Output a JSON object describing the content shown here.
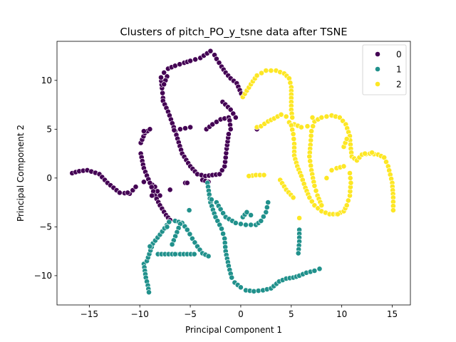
{
  "chart_data": {
    "type": "scatter",
    "title": "Clusters of pitch_PO_y_tsne data after TSNE",
    "xlabel": "Principal Component 1",
    "ylabel": "Principal Component 2",
    "xlim": [
      -18.2,
      16.8
    ],
    "ylim": [
      -13.0,
      14.0
    ],
    "xticks": [
      -15,
      -10,
      -5,
      0,
      5,
      10,
      15
    ],
    "xtick_labels": [
      "−15",
      "−10",
      "−5",
      "0",
      "5",
      "10",
      "15"
    ],
    "yticks": [
      -10,
      -5,
      0,
      5,
      10
    ],
    "ytick_labels": [
      "−10",
      "−5",
      "0",
      "5",
      "10"
    ],
    "grid": false,
    "legend_position": "top-right",
    "series": [
      {
        "name": "0",
        "color": "#440154",
        "path_segments": [
          [
            [
              -16.7,
              0.5
            ],
            [
              -16.0,
              0.7
            ],
            [
              -15.2,
              0.8
            ],
            [
              -14.0,
              0.4
            ],
            [
              -13.2,
              -0.5
            ],
            [
              -12.0,
              -1.5
            ],
            [
              -11.0,
              -1.6
            ],
            [
              -10.4,
              -0.9
            ]
          ],
          [
            [
              -9.6,
              -0.4
            ],
            [
              -9.0,
              -0.5
            ],
            [
              -8.5,
              -0.9
            ],
            [
              -8.0,
              -1.8
            ]
          ],
          [
            [
              -9.9,
              3.6
            ],
            [
              -9.5,
              4.6
            ],
            [
              -9.0,
              5.0
            ]
          ],
          [
            [
              -9.9,
              2.5
            ],
            [
              -9.6,
              1.0
            ],
            [
              -9.0,
              -0.5
            ],
            [
              -8.5,
              -1.8
            ],
            [
              -8.0,
              -2.8
            ],
            [
              -7.4,
              -3.8
            ],
            [
              -7.0,
              -4.3
            ]
          ],
          [
            [
              -7.7,
              8.2
            ],
            [
              -7.8,
              9.2
            ],
            [
              -7.9,
              10.3
            ],
            [
              -7.6,
              10.8
            ],
            [
              -7.2,
              11.2
            ],
            [
              -6.5,
              11.5
            ],
            [
              -5.6,
              11.8
            ],
            [
              -5.0,
              12.0
            ],
            [
              -4.0,
              12.3
            ],
            [
              -3.0,
              13.0
            ],
            [
              -2.6,
              12.6
            ],
            [
              -2.4,
              12.2
            ],
            [
              -1.9,
              11.4
            ],
            [
              -1.5,
              10.8
            ],
            [
              -1.0,
              10.2
            ],
            [
              -0.4,
              9.7
            ],
            [
              0.2,
              8.3
            ]
          ],
          [
            [
              -7.7,
              7.9
            ],
            [
              -7.2,
              6.8
            ],
            [
              -6.5,
              4.8
            ],
            [
              -5.8,
              2.5
            ],
            [
              -5.0,
              1.2
            ],
            [
              -4.3,
              0.4
            ],
            [
              -3.5,
              0.2
            ],
            [
              -2.8,
              0.3
            ],
            [
              -2.1,
              0.4
            ],
            [
              -1.6,
              1.2
            ],
            [
              -1.4,
              3.0
            ],
            [
              -1.2,
              4.5
            ]
          ],
          [
            [
              -6.6,
              4.9
            ],
            [
              -6.0,
              5.0
            ],
            [
              -5.0,
              5.2
            ]
          ],
          [
            [
              -3.4,
              5.0
            ],
            [
              -2.8,
              5.5
            ],
            [
              -2.0,
              6.0
            ],
            [
              -1.2,
              6.2
            ]
          ],
          [
            [
              -1.8,
              7.8
            ],
            [
              -1.0,
              7.0
            ],
            [
              -0.5,
              6.2
            ]
          ],
          [
            [
              -1.1,
              5.9
            ],
            [
              -1.0,
              5.0
            ]
          ],
          [
            [
              -7.3,
              10.4
            ],
            [
              -7.6,
              9.6
            ]
          ],
          [
            [
              -5.5,
              -0.5
            ],
            [
              -5.3,
              -0.5
            ]
          ],
          [
            [
              -3.8,
              -0.2
            ],
            [
              -3.2,
              -0.4
            ]
          ]
        ],
        "points": [
          [
            1.6,
            5.0
          ],
          [
            -8.8,
            -1.8
          ],
          [
            -7.0,
            -1.2
          ],
          [
            -11.2,
            -1.5
          ],
          [
            -9.6,
            4.8
          ]
        ]
      },
      {
        "name": "1",
        "color": "#21918c",
        "path_segments": [
          [
            [
              -9.6,
              -8.8
            ],
            [
              -9.5,
              -9.5
            ],
            [
              -9.4,
              -10.2
            ],
            [
              -9.2,
              -11.0
            ],
            [
              -9.1,
              -11.7
            ]
          ],
          [
            [
              -9.3,
              -8.5
            ],
            [
              -8.7,
              -6.7
            ],
            [
              -8.0,
              -5.8
            ],
            [
              -7.1,
              -4.5
            ],
            [
              -6.5,
              -4.4
            ],
            [
              -5.8,
              -4.6
            ],
            [
              -5.3,
              -5.3
            ],
            [
              -4.8,
              -6.2
            ],
            [
              -4.3,
              -7.0
            ],
            [
              -3.8,
              -7.7
            ],
            [
              -3.2,
              -8.0
            ]
          ],
          [
            [
              -8.2,
              -7.8
            ],
            [
              -7.5,
              -7.8
            ],
            [
              -6.8,
              -7.8
            ],
            [
              -6.0,
              -7.8
            ],
            [
              -5.3,
              -7.8
            ],
            [
              -4.6,
              -7.8
            ]
          ],
          [
            [
              -3.3,
              -0.5
            ],
            [
              -3.0,
              -2.5
            ],
            [
              -2.5,
              -4.0
            ],
            [
              -1.9,
              -5.2
            ],
            [
              -1.6,
              -6.2
            ],
            [
              -1.5,
              -7.5
            ],
            [
              -1.2,
              -9.0
            ],
            [
              -0.9,
              -10.2
            ],
            [
              -0.6,
              -10.7
            ],
            [
              0.0,
              -11.2
            ],
            [
              0.5,
              -11.5
            ],
            [
              1.3,
              -11.6
            ],
            [
              2.2,
              -11.5
            ],
            [
              3.0,
              -11.3
            ],
            [
              3.8,
              -10.6
            ],
            [
              4.5,
              -10.3
            ],
            [
              5.2,
              -10.2
            ],
            [
              5.8,
              -10.0
            ],
            [
              6.5,
              -9.7
            ],
            [
              7.3,
              -9.5
            ],
            [
              7.8,
              -9.3
            ]
          ],
          [
            [
              -2.4,
              -2.5
            ],
            [
              -2.0,
              -3.2
            ],
            [
              -1.5,
              -4.0
            ],
            [
              -0.5,
              -4.6
            ],
            [
              0.5,
              -4.8
            ],
            [
              1.5,
              -4.8
            ],
            [
              2.0,
              -4.4
            ],
            [
              2.5,
              -3.5
            ],
            [
              2.7,
              -2.5
            ]
          ],
          [
            [
              0.2,
              -4.0
            ],
            [
              0.6,
              -3.5
            ],
            [
              1.0,
              -3.8
            ]
          ],
          [
            [
              5.8,
              -5.3
            ],
            [
              5.8,
              -6.5
            ],
            [
              5.7,
              -7.7
            ]
          ],
          [
            [
              -6.0,
              -4.7
            ],
            [
              -6.8,
              -6.8
            ]
          ]
        ],
        "points": [
          [
            -5.1,
            -3.3
          ],
          [
            -2.9,
            -2.2
          ],
          [
            -7.3,
            -5.0
          ],
          [
            -9.0,
            -7.0
          ],
          [
            -6.5,
            -7.8
          ]
        ]
      },
      {
        "name": "2",
        "color": "#fde725",
        "path_segments": [
          [
            [
              0.2,
              8.3
            ],
            [
              1.0,
              9.6
            ],
            [
              1.6,
              10.5
            ],
            [
              2.5,
              11.0
            ],
            [
              3.5,
              11.0
            ],
            [
              4.3,
              10.7
            ],
            [
              4.8,
              10.2
            ],
            [
              5.0,
              9.3
            ],
            [
              5.0,
              8.2
            ],
            [
              5.0,
              7.0
            ],
            [
              5.1,
              6.2
            ]
          ],
          [
            [
              1.6,
              5.2
            ],
            [
              2.0,
              5.3
            ],
            [
              2.7,
              5.8
            ],
            [
              3.3,
              6.1
            ],
            [
              4.0,
              6.5
            ],
            [
              4.5,
              6.3
            ]
          ],
          [
            [
              4.8,
              5.7
            ],
            [
              5.3,
              5.5
            ],
            [
              6.0,
              5.2
            ],
            [
              6.6,
              5.3
            ]
          ],
          [
            [
              5.0,
              5.4
            ],
            [
              5.2,
              4.5
            ],
            [
              5.3,
              3.5
            ],
            [
              5.3,
              2.3
            ],
            [
              5.6,
              1.2
            ],
            [
              6.0,
              0.2
            ],
            [
              6.4,
              -1.0
            ],
            [
              6.8,
              -2.0
            ],
            [
              7.3,
              -2.8
            ],
            [
              8.0,
              -3.4
            ],
            [
              8.8,
              -3.7
            ],
            [
              9.5,
              -3.7
            ],
            [
              10.2,
              -3.4
            ],
            [
              10.5,
              -2.8
            ],
            [
              10.8,
              -1.8
            ],
            [
              10.9,
              -0.5
            ],
            [
              10.8,
              0.5
            ]
          ],
          [
            [
              6.9,
              3.4
            ],
            [
              7.0,
              4.8
            ],
            [
              7.3,
              5.8
            ],
            [
              8.0,
              6.2
            ],
            [
              9.0,
              6.4
            ],
            [
              9.8,
              6.2
            ],
            [
              10.4,
              5.5
            ],
            [
              10.8,
              4.3
            ],
            [
              10.9,
              3.0
            ],
            [
              11.0,
              2.2
            ],
            [
              11.5,
              1.8
            ],
            [
              12.0,
              2.4
            ],
            [
              12.8,
              2.5
            ],
            [
              13.6,
              2.4
            ],
            [
              14.2,
              2.1
            ],
            [
              14.6,
              1.2
            ],
            [
              15.0,
              -0.5
            ],
            [
              15.1,
              -2.0
            ],
            [
              15.1,
              -3.3
            ]
          ],
          [
            [
              6.9,
              3.4
            ],
            [
              6.8,
              2.2
            ],
            [
              7.0,
              0.8
            ],
            [
              7.3,
              -0.8
            ],
            [
              7.6,
              -1.8
            ],
            [
              8.0,
              -2.8
            ]
          ],
          [
            [
              0.8,
              0.2
            ],
            [
              1.5,
              0.3
            ],
            [
              2.3,
              0.3
            ]
          ],
          [
            [
              9.0,
              0.8
            ],
            [
              9.5,
              1.0
            ],
            [
              10.2,
              1.2
            ]
          ],
          [
            [
              10.2,
              3.2
            ],
            [
              10.5,
              4.0
            ]
          ],
          [
            [
              3.9,
              -0.2
            ],
            [
              4.5,
              -1.2
            ],
            [
              5.2,
              -2.0
            ]
          ]
        ],
        "points": [
          [
            5.8,
            -4.1
          ],
          [
            8.5,
            0.0
          ],
          [
            0.8,
            0.2
          ],
          [
            12.3,
            2.5
          ],
          [
            7.1,
            6.2
          ],
          [
            9.6,
            -3.7
          ],
          [
            13.0,
            2.6
          ]
        ]
      }
    ]
  }
}
